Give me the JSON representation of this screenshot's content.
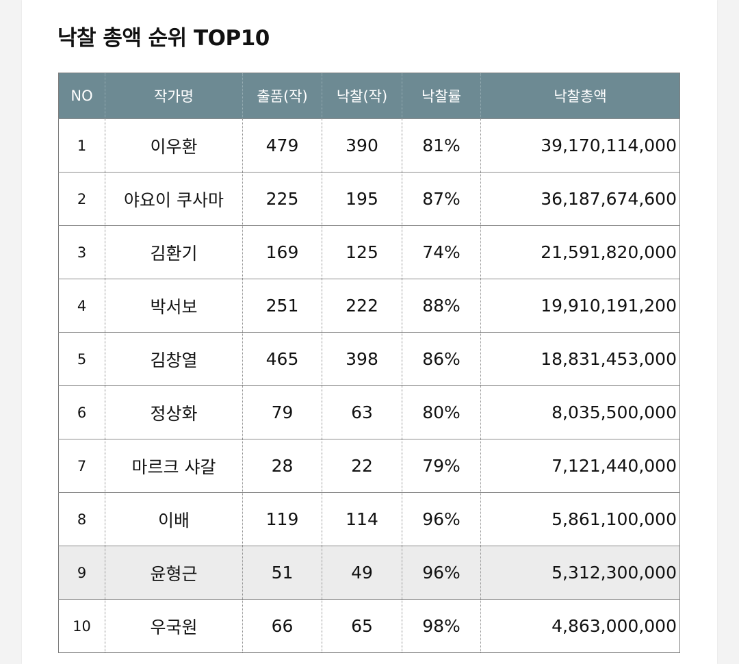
{
  "title": "낙찰 총액 순위 TOP10",
  "table": {
    "headers": [
      "NO",
      "작가명",
      "출품(작)",
      "낙찰(작)",
      "낙찰률",
      "낙찰총액"
    ],
    "rows": [
      {
        "no": "1",
        "artist": "이우환",
        "exhibited": "479",
        "sold": "390",
        "rate": "81%",
        "total": "39,170,114,000"
      },
      {
        "no": "2",
        "artist": "야요이 쿠사마",
        "exhibited": "225",
        "sold": "195",
        "rate": "87%",
        "total": "36,187,674,600"
      },
      {
        "no": "3",
        "artist": "김환기",
        "exhibited": "169",
        "sold": "125",
        "rate": "74%",
        "total": "21,591,820,000"
      },
      {
        "no": "4",
        "artist": "박서보",
        "exhibited": "251",
        "sold": "222",
        "rate": "88%",
        "total": "19,910,191,200"
      },
      {
        "no": "5",
        "artist": "김창열",
        "exhibited": "465",
        "sold": "398",
        "rate": "86%",
        "total": "18,831,453,000"
      },
      {
        "no": "6",
        "artist": "정상화",
        "exhibited": "79",
        "sold": "63",
        "rate": "80%",
        "total": "8,035,500,000"
      },
      {
        "no": "7",
        "artist": "마르크 샤갈",
        "exhibited": "28",
        "sold": "22",
        "rate": "79%",
        "total": "7,121,440,000"
      },
      {
        "no": "8",
        "artist": "이배",
        "exhibited": "119",
        "sold": "114",
        "rate": "96%",
        "total": "5,861,100,000"
      },
      {
        "no": "9",
        "artist": "윤형근",
        "exhibited": "51",
        "sold": "49",
        "rate": "96%",
        "total": "5,312,300,000"
      },
      {
        "no": "10",
        "artist": "우국원",
        "exhibited": "66",
        "sold": "65",
        "rate": "98%",
        "total": "4,863,000,000"
      }
    ],
    "highlighted_row": "9"
  },
  "colors": {
    "header_bg": "#6d8a93",
    "highlight_row_bg": "#ececec"
  }
}
